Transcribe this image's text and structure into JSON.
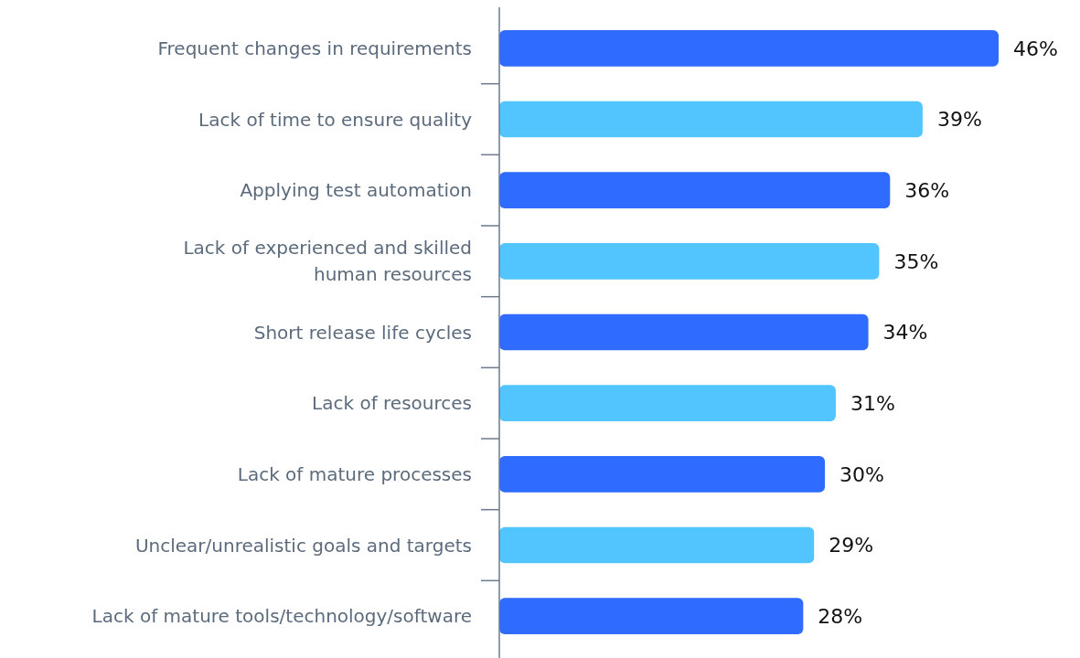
{
  "chart_data": {
    "type": "bar",
    "orientation": "horizontal",
    "data_labels": true,
    "categories": [
      "Frequent changes in requirements",
      "Lack of time to ensure quality",
      "Applying test automation",
      "Lack of experienced and skilled\nhuman resources",
      "Short release life cycles",
      "Lack of resources",
      "Lack of mature processes",
      "Unclear/unrealistic goals and targets",
      "Lack of mature tools/technology/software"
    ],
    "values": [
      46,
      39,
      36,
      35,
      34,
      31,
      30,
      29,
      28
    ],
    "value_labels": [
      "46%",
      "39%",
      "36%",
      "35%",
      "34%",
      "31%",
      "30%",
      "29%",
      "28%"
    ],
    "colors": [
      "#2f6bff",
      "#52c5ff",
      "#2f6bff",
      "#52c5ff",
      "#2f6bff",
      "#52c5ff",
      "#2f6bff",
      "#52c5ff",
      "#2f6bff"
    ]
  }
}
